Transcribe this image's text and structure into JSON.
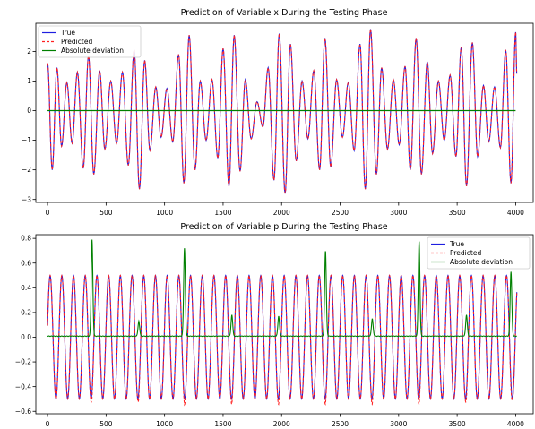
{
  "chart_data": [
    {
      "type": "line",
      "title": "Prediction of Variable x During the Testing Phase",
      "xlabel": "",
      "ylabel": "",
      "xlim": [
        -100,
        4150
      ],
      "ylim": [
        -3.1,
        2.95
      ],
      "xticks": [
        0,
        500,
        1000,
        1500,
        2000,
        2500,
        3000,
        3500,
        4000
      ],
      "yticks": [
        -3,
        -2,
        -1,
        0,
        1,
        2
      ],
      "grid": false,
      "legend": "top-left",
      "n_points": 4000,
      "extrema": [
        {
          "x": 0,
          "y": 1.6
        },
        {
          "x": 40,
          "y": -2.0
        },
        {
          "x": 80,
          "y": 1.45
        },
        {
          "x": 120,
          "y": -1.2
        },
        {
          "x": 165,
          "y": 0.95
        },
        {
          "x": 210,
          "y": -1.1
        },
        {
          "x": 255,
          "y": 1.3
        },
        {
          "x": 305,
          "y": -1.95
        },
        {
          "x": 350,
          "y": 1.85
        },
        {
          "x": 395,
          "y": -2.15
        },
        {
          "x": 445,
          "y": 1.35
        },
        {
          "x": 490,
          "y": -1.3
        },
        {
          "x": 540,
          "y": 1.0
        },
        {
          "x": 590,
          "y": -1.1
        },
        {
          "x": 640,
          "y": 1.3
        },
        {
          "x": 690,
          "y": -1.85
        },
        {
          "x": 740,
          "y": 2.05
        },
        {
          "x": 785,
          "y": -2.65
        },
        {
          "x": 830,
          "y": 1.7
        },
        {
          "x": 875,
          "y": -1.35
        },
        {
          "x": 925,
          "y": 0.8
        },
        {
          "x": 970,
          "y": -0.9
        },
        {
          "x": 1020,
          "y": 0.75
        },
        {
          "x": 1070,
          "y": -1.05
        },
        {
          "x": 1120,
          "y": 1.9
        },
        {
          "x": 1165,
          "y": -2.45
        },
        {
          "x": 1210,
          "y": 2.55
        },
        {
          "x": 1260,
          "y": -2.0
        },
        {
          "x": 1305,
          "y": 1.0
        },
        {
          "x": 1355,
          "y": -1.0
        },
        {
          "x": 1405,
          "y": 1.05
        },
        {
          "x": 1455,
          "y": -1.6
        },
        {
          "x": 1500,
          "y": 2.1
        },
        {
          "x": 1550,
          "y": -2.55
        },
        {
          "x": 1595,
          "y": 2.55
        },
        {
          "x": 1645,
          "y": -2.05
        },
        {
          "x": 1690,
          "y": 1.05
        },
        {
          "x": 1740,
          "y": -0.95
        },
        {
          "x": 1790,
          "y": 0.3
        },
        {
          "x": 1840,
          "y": -0.55
        },
        {
          "x": 1885,
          "y": 1.45
        },
        {
          "x": 1935,
          "y": -2.35
        },
        {
          "x": 1980,
          "y": 2.6
        },
        {
          "x": 2030,
          "y": -2.8
        },
        {
          "x": 2075,
          "y": 2.25
        },
        {
          "x": 2125,
          "y": -1.7
        },
        {
          "x": 2175,
          "y": 1.0
        },
        {
          "x": 2225,
          "y": -0.95
        },
        {
          "x": 2275,
          "y": 1.35
        },
        {
          "x": 2325,
          "y": -2.0
        },
        {
          "x": 2370,
          "y": 2.45
        },
        {
          "x": 2420,
          "y": -1.9
        },
        {
          "x": 2470,
          "y": 1.05
        },
        {
          "x": 2520,
          "y": -0.9
        },
        {
          "x": 2570,
          "y": 0.95
        },
        {
          "x": 2620,
          "y": -1.35
        },
        {
          "x": 2670,
          "y": 2.25
        },
        {
          "x": 2715,
          "y": -2.65
        },
        {
          "x": 2760,
          "y": 2.75
        },
        {
          "x": 2810,
          "y": -2.15
        },
        {
          "x": 2855,
          "y": 1.45
        },
        {
          "x": 2905,
          "y": -1.3
        },
        {
          "x": 2955,
          "y": 1.05
        },
        {
          "x": 3005,
          "y": -1.15
        },
        {
          "x": 3055,
          "y": 1.5
        },
        {
          "x": 3100,
          "y": -2.0
        },
        {
          "x": 3150,
          "y": 2.45
        },
        {
          "x": 3195,
          "y": -2.15
        },
        {
          "x": 3245,
          "y": 1.65
        },
        {
          "x": 3290,
          "y": -1.45
        },
        {
          "x": 3340,
          "y": 1.0
        },
        {
          "x": 3390,
          "y": -1.0
        },
        {
          "x": 3440,
          "y": 1.2
        },
        {
          "x": 3490,
          "y": -1.55
        },
        {
          "x": 3535,
          "y": 2.15
        },
        {
          "x": 3580,
          "y": -2.55
        },
        {
          "x": 3630,
          "y": 2.3
        },
        {
          "x": 3675,
          "y": -1.55
        },
        {
          "x": 3725,
          "y": 0.85
        },
        {
          "x": 3770,
          "y": -1.05
        },
        {
          "x": 3820,
          "y": 0.8
        },
        {
          "x": 3870,
          "y": -1.25
        },
        {
          "x": 3915,
          "y": 2.05
        },
        {
          "x": 3960,
          "y": -2.45
        },
        {
          "x": 4000,
          "y": 2.65
        },
        {
          "x": 4010,
          "y": 1.25
        }
      ],
      "series": [
        {
          "name": "True",
          "color": "#1f1fe0",
          "style": "solid"
        },
        {
          "name": "Predicted",
          "color": "#ff2020",
          "style": "dashed"
        },
        {
          "name": "Absolute deviation",
          "color": "#008000",
          "style": "solid",
          "values_approx": 0.0
        }
      ]
    },
    {
      "type": "line",
      "title": "Prediction of Variable p During the Testing Phase",
      "xlabel": "",
      "ylabel": "",
      "xlim": [
        -100,
        4150
      ],
      "ylim": [
        -0.62,
        0.83
      ],
      "xticks": [
        0,
        500,
        1000,
        1500,
        2000,
        2500,
        3000,
        3500,
        4000
      ],
      "yticks": [
        -0.6,
        -0.4,
        -0.2,
        0.0,
        0.2,
        0.4,
        0.6,
        0.8
      ],
      "grid": false,
      "legend": "top-right",
      "n_points": 4000,
      "oscillation_period": 100,
      "amplitude": 0.5,
      "deviation_spikes": [
        {
          "x": 380,
          "y": 0.76
        },
        {
          "x": 780,
          "y": 0.1
        },
        {
          "x": 1170,
          "y": 0.69
        },
        {
          "x": 1575,
          "y": 0.15
        },
        {
          "x": 1975,
          "y": 0.14
        },
        {
          "x": 2375,
          "y": 0.67
        },
        {
          "x": 2775,
          "y": 0.12
        },
        {
          "x": 3175,
          "y": 0.75
        },
        {
          "x": 3580,
          "y": 0.15
        },
        {
          "x": 3960,
          "y": 0.5
        }
      ],
      "series": [
        {
          "name": "True",
          "color": "#1f1fe0",
          "style": "solid"
        },
        {
          "name": "Predicted",
          "color": "#ff2020",
          "style": "dashed"
        },
        {
          "name": "Absolute deviation",
          "color": "#008000",
          "style": "solid"
        }
      ]
    }
  ]
}
